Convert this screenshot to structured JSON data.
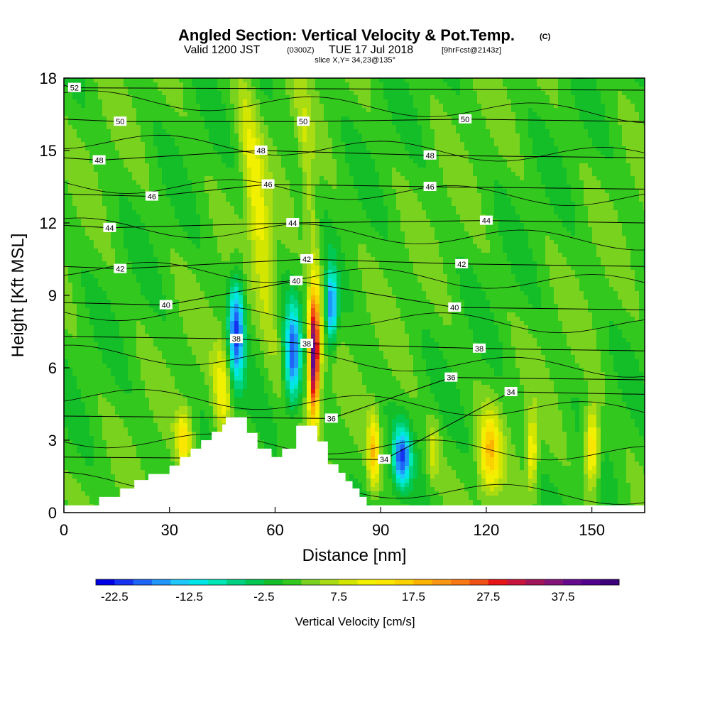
{
  "header": {
    "title_main": "Angled Section: Vertical Velocity & Pot.Temp.",
    "title_tag": "(C)",
    "valid_prefix": "Valid 1200 JST",
    "valid_utc": "(0300Z)",
    "valid_date": "TUE 17 Jul 2018",
    "valid_run": "[9hrFcst@2143z]",
    "slice": "slice X,Y= 34,23@135°"
  },
  "chart_data": {
    "type": "heatmap",
    "xlabel": "Distance [nm]",
    "ylabel": "Height [Kft MSL]",
    "xlim": [
      0,
      165
    ],
    "ylim": [
      0,
      18
    ],
    "x_ticks": [
      0,
      30,
      60,
      90,
      120,
      150
    ],
    "y_ticks": [
      0,
      3,
      6,
      9,
      12,
      15,
      18
    ],
    "colorbar": {
      "title": "Vertical Velocity [cm/s]",
      "min": -25,
      "max": 45,
      "step": 2.5,
      "tick_labels": [
        "-22.5",
        "-12.5",
        "-2.5",
        "7.5",
        "17.5",
        "27.5",
        "37.5"
      ],
      "tick_values": [
        -22.5,
        -12.5,
        -2.5,
        7.5,
        17.5,
        27.5,
        37.5
      ],
      "colors": [
        "#0000e6",
        "#1432f0",
        "#1e64f5",
        "#1e96fa",
        "#1ec8fa",
        "#00e6e6",
        "#00e6b4",
        "#00d282",
        "#00c850",
        "#14be28",
        "#32c81e",
        "#78d21e",
        "#aadc14",
        "#d2e600",
        "#f0f000",
        "#fae600",
        "#fad200",
        "#fab400",
        "#fa9614",
        "#fa7814",
        "#f05014",
        "#e61414",
        "#c8143c",
        "#a0145a",
        "#821478",
        "#640a8c",
        "#50008c",
        "#3c0078"
      ]
    },
    "terrain_profile": [
      [
        0,
        0.3
      ],
      [
        10,
        0.3
      ],
      [
        10,
        0.65
      ],
      [
        16,
        0.65
      ],
      [
        16,
        1.0
      ],
      [
        20,
        1.0
      ],
      [
        20,
        1.35
      ],
      [
        24,
        1.35
      ],
      [
        24,
        1.6
      ],
      [
        30,
        1.6
      ],
      [
        30,
        1.95
      ],
      [
        33,
        1.95
      ],
      [
        33,
        2.3
      ],
      [
        36,
        2.3
      ],
      [
        36,
        2.65
      ],
      [
        39,
        2.65
      ],
      [
        39,
        3.0
      ],
      [
        42,
        3.0
      ],
      [
        42,
        3.35
      ],
      [
        45,
        3.35
      ],
      [
        45,
        3.65
      ],
      [
        46,
        3.65
      ],
      [
        46,
        3.95
      ],
      [
        52,
        3.95
      ],
      [
        52,
        3.3
      ],
      [
        55,
        3.3
      ],
      [
        55,
        2.65
      ],
      [
        59,
        2.65
      ],
      [
        59,
        2.3
      ],
      [
        62,
        2.3
      ],
      [
        62,
        2.65
      ],
      [
        66,
        2.65
      ],
      [
        66,
        3.6
      ],
      [
        72,
        3.6
      ],
      [
        72,
        2.95
      ],
      [
        75,
        2.95
      ],
      [
        75,
        2.0
      ],
      [
        78,
        2.0
      ],
      [
        78,
        1.65
      ],
      [
        80,
        1.65
      ],
      [
        80,
        1.3
      ],
      [
        82,
        1.3
      ],
      [
        82,
        1.0
      ],
      [
        84,
        1.0
      ],
      [
        84,
        0.65
      ],
      [
        86,
        0.65
      ],
      [
        86,
        0.3
      ],
      [
        165,
        0.3
      ]
    ],
    "theta_contours": [
      {
        "label": "34",
        "label_pos": [
          91,
          2.2
        ]
      },
      {
        "label": "34",
        "label_pos": [
          127,
          5.0
        ]
      },
      {
        "label": "36",
        "label_pos": [
          76,
          3.9
        ]
      },
      {
        "label": "36",
        "label_pos": [
          110,
          5.6
        ]
      },
      {
        "label": "38",
        "label_pos": [
          49,
          7.2
        ]
      },
      {
        "label": "38",
        "label_pos": [
          69,
          7.0
        ]
      },
      {
        "label": "38",
        "label_pos": [
          118,
          6.8
        ]
      },
      {
        "label": "40",
        "label_pos": [
          29,
          8.6
        ]
      },
      {
        "label": "40",
        "label_pos": [
          66,
          9.6
        ]
      },
      {
        "label": "40",
        "label_pos": [
          111,
          8.5
        ]
      },
      {
        "label": "42",
        "label_pos": [
          16,
          10.1
        ]
      },
      {
        "label": "42",
        "label_pos": [
          69,
          10.5
        ]
      },
      {
        "label": "42",
        "label_pos": [
          113,
          10.3
        ]
      },
      {
        "label": "44",
        "label_pos": [
          13,
          11.8
        ]
      },
      {
        "label": "44",
        "label_pos": [
          65,
          12.0
        ]
      },
      {
        "label": "44",
        "label_pos": [
          120,
          12.1
        ]
      },
      {
        "label": "46",
        "label_pos": [
          25,
          13.1
        ]
      },
      {
        "label": "46",
        "label_pos": [
          58,
          13.6
        ]
      },
      {
        "label": "46",
        "label_pos": [
          104,
          13.5
        ]
      },
      {
        "label": "48",
        "label_pos": [
          10,
          14.6
        ]
      },
      {
        "label": "48",
        "label_pos": [
          56,
          15.0
        ]
      },
      {
        "label": "48",
        "label_pos": [
          104,
          14.8
        ]
      },
      {
        "label": "50",
        "label_pos": [
          16,
          16.2
        ]
      },
      {
        "label": "50",
        "label_pos": [
          68,
          16.2
        ]
      },
      {
        "label": "50",
        "label_pos": [
          114,
          16.3
        ]
      },
      {
        "label": "52",
        "label_pos": [
          3,
          17.6
        ]
      }
    ],
    "velocity_features": [
      {
        "x": 55,
        "y": 12.5,
        "sx": 3.0,
        "sy": 5.5,
        "amp": 10,
        "tilt": -0.25
      },
      {
        "x": 70,
        "y": 13.0,
        "sx": 2.0,
        "sy": 5.0,
        "amp": 6,
        "tilt": -0.2
      },
      {
        "x": 71,
        "y": 6.5,
        "sx": 1.6,
        "sy": 2.5,
        "amp": 40
      },
      {
        "x": 65,
        "y": 6.5,
        "sx": 2.2,
        "sy": 2.0,
        "amp": -20
      },
      {
        "x": 49,
        "y": 7.5,
        "sx": 2.2,
        "sy": 2.2,
        "amp": -22
      },
      {
        "x": 45,
        "y": 5.0,
        "sx": 2.5,
        "sy": 2.0,
        "amp": 10
      },
      {
        "x": 76,
        "y": 8.5,
        "sx": 1.6,
        "sy": 1.5,
        "amp": -20
      },
      {
        "x": 88,
        "y": 2.5,
        "sx": 1.6,
        "sy": 1.5,
        "amp": 15
      },
      {
        "x": 96,
        "y": 2.3,
        "sx": 2.5,
        "sy": 1.2,
        "amp": -20
      },
      {
        "x": 105,
        "y": 2.5,
        "sx": 1.6,
        "sy": 1.3,
        "amp": 7
      },
      {
        "x": 121,
        "y": 2.5,
        "sx": 3.0,
        "sy": 1.6,
        "amp": 15
      },
      {
        "x": 133,
        "y": 2.5,
        "sx": 1.5,
        "sy": 1.5,
        "amp": 12
      },
      {
        "x": 150,
        "y": 2.7,
        "sx": 2.0,
        "sy": 1.6,
        "amp": 16
      },
      {
        "x": 34,
        "y": 3.0,
        "sx": 2.0,
        "sy": 1.2,
        "amp": 12
      }
    ]
  }
}
